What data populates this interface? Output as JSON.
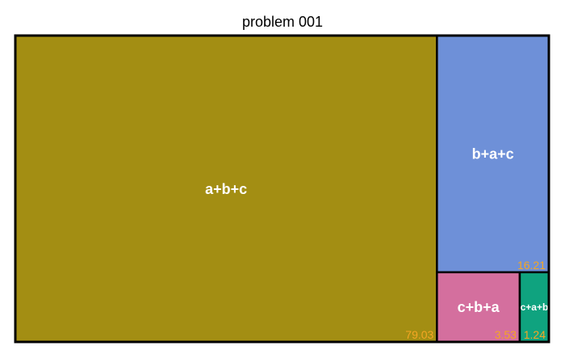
{
  "chart_data": {
    "type": "treemap",
    "title": "problem 001",
    "series": [
      {
        "name": "a+b+c",
        "value": 79.03,
        "value_label": "79.03",
        "color": "#a38e13"
      },
      {
        "name": "b+a+c",
        "value": 16.21,
        "value_label": "16.21",
        "color": "#6e90d8"
      },
      {
        "name": "c+b+a",
        "value": 3.53,
        "value_label": "3.53",
        "color": "#d46f9e"
      },
      {
        "name": "c+a+b",
        "value": 1.24,
        "value_label": "1.24",
        "color": "#0fa37f"
      }
    ],
    "value_label_color": "#f5a623",
    "border_color": "#000000"
  }
}
